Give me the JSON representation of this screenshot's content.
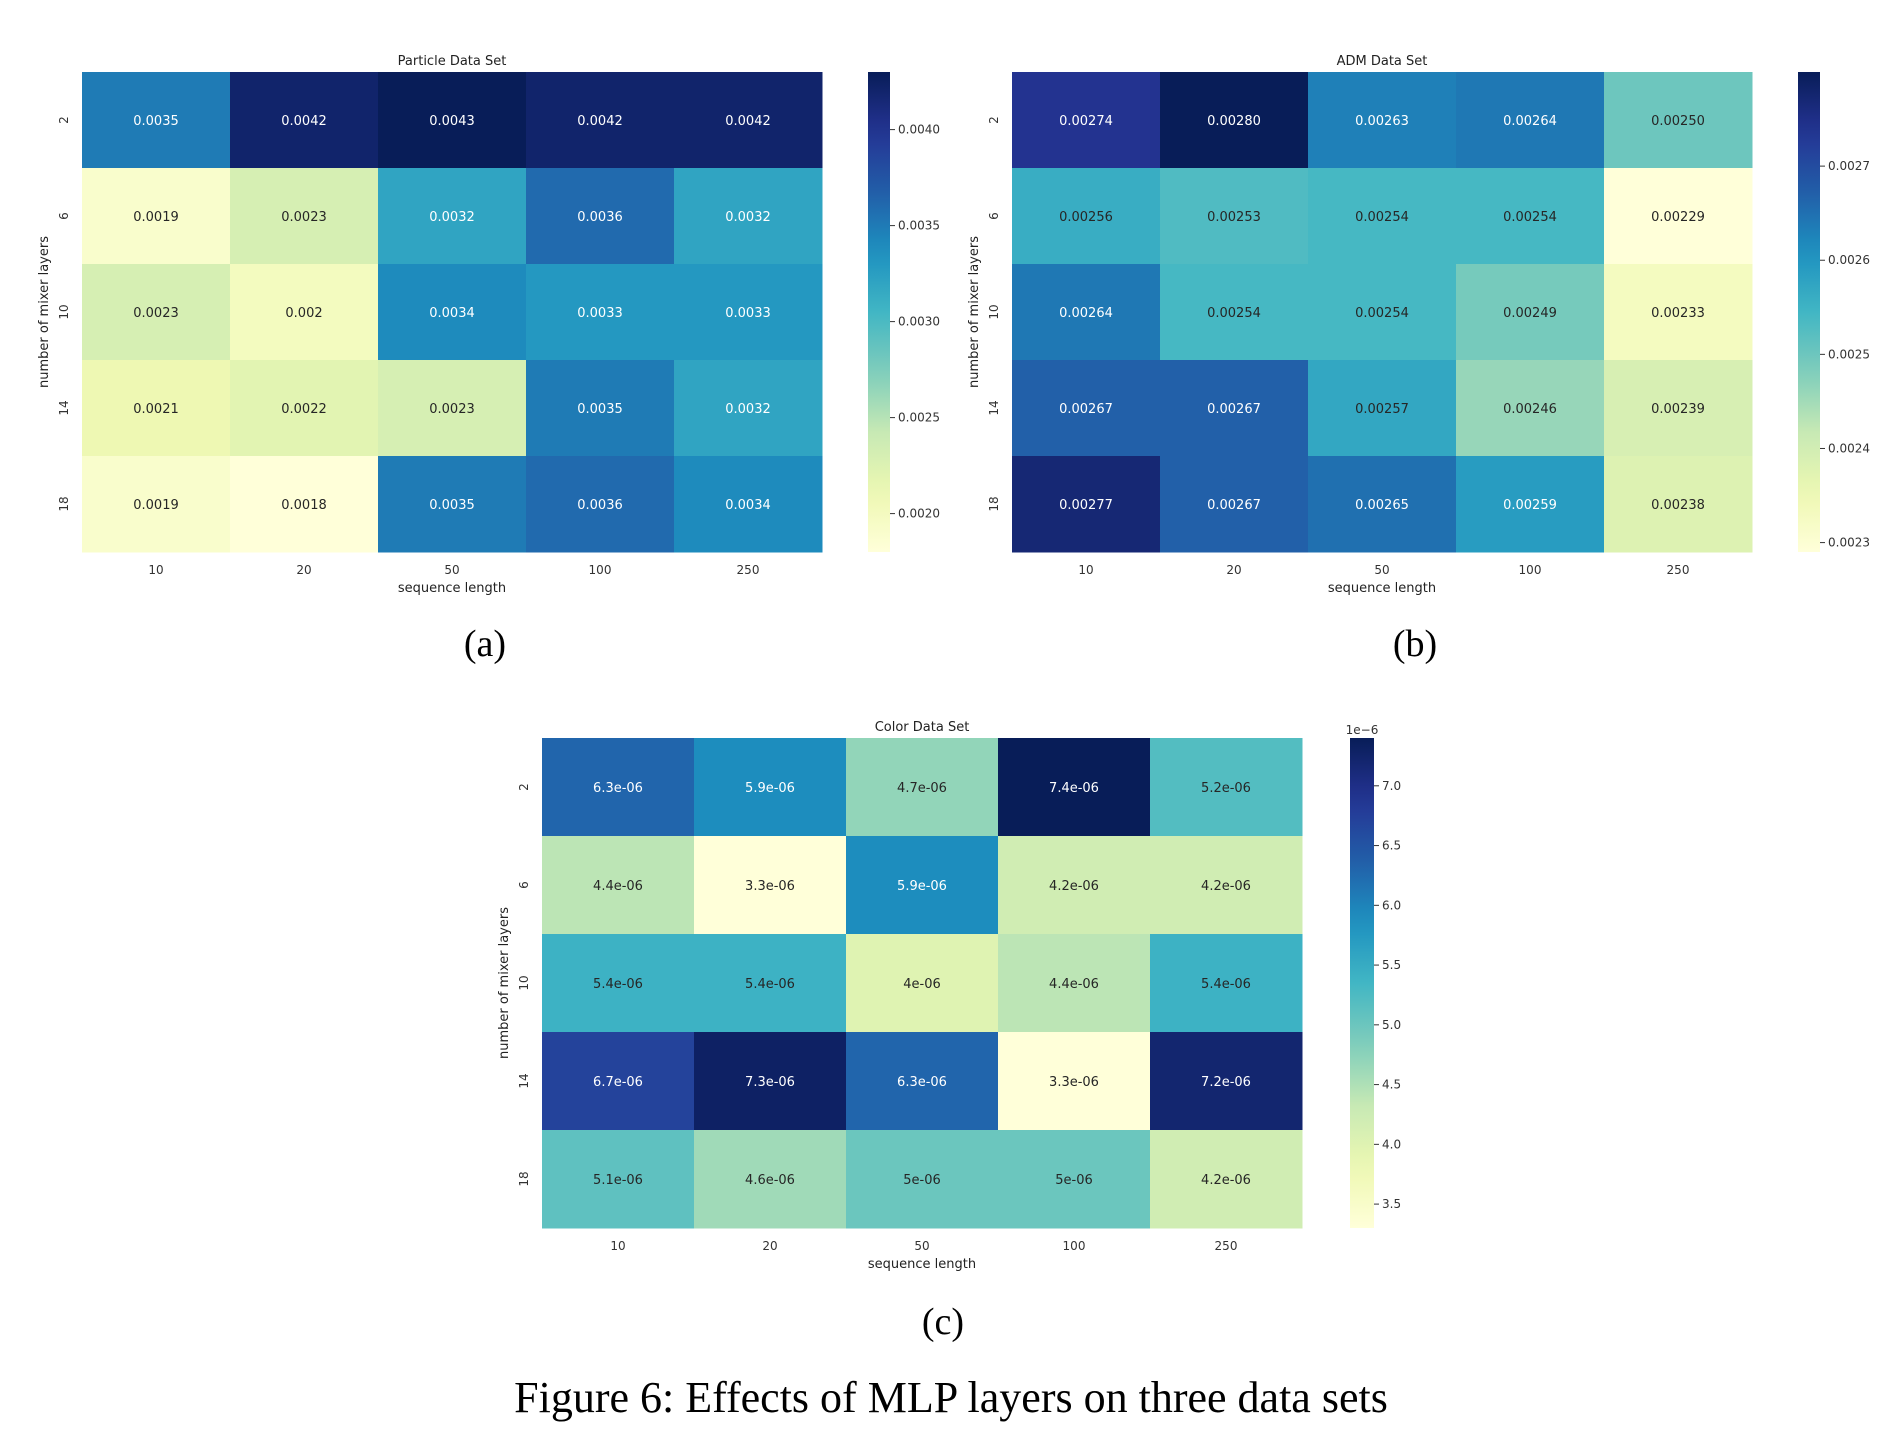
{
  "caption": "Figure 6: Effects of MLP layers on three data sets",
  "chart_data": [
    {
      "type": "heatmap",
      "label": "(a)",
      "title": "Particle Data Set",
      "xlabel": "sequence length",
      "ylabel": "number of mixer layers",
      "x": [
        "10",
        "20",
        "50",
        "100",
        "250"
      ],
      "y": [
        "2",
        "6",
        "10",
        "14",
        "18"
      ],
      "values": [
        [
          0.0035,
          0.0042,
          0.0043,
          0.0042,
          0.0042
        ],
        [
          0.0019,
          0.0023,
          0.0032,
          0.0036,
          0.0032
        ],
        [
          0.0023,
          0.002,
          0.0034,
          0.0033,
          0.0033
        ],
        [
          0.0021,
          0.0022,
          0.0023,
          0.0035,
          0.0032
        ],
        [
          0.0019,
          0.0018,
          0.0035,
          0.0036,
          0.0034
        ]
      ],
      "cell_labels": [
        [
          "0.0035",
          "0.0042",
          "0.0043",
          "0.0042",
          "0.0042"
        ],
        [
          "0.0019",
          "0.0023",
          "0.0032",
          "0.0036",
          "0.0032"
        ],
        [
          "0.0023",
          "0.002",
          "0.0034",
          "0.0033",
          "0.0033"
        ],
        [
          "0.0021",
          "0.0022",
          "0.0023",
          "0.0035",
          "0.0032"
        ],
        [
          "0.0019",
          "0.0018",
          "0.0035",
          "0.0036",
          "0.0034"
        ]
      ],
      "colorbar": {
        "min": 0.0018,
        "max": 0.0043,
        "ticks": [
          0.002,
          0.0025,
          0.003,
          0.0035,
          0.004
        ],
        "tick_labels": [
          "0.0020",
          "0.0025",
          "0.0030",
          "0.0035",
          "0.0040"
        ],
        "offset_label": ""
      },
      "colormap": "YlGnBu"
    },
    {
      "type": "heatmap",
      "label": "(b)",
      "title": "ADM Data Set",
      "xlabel": "sequence length",
      "ylabel": "number of mixer layers",
      "x": [
        "10",
        "20",
        "50",
        "100",
        "250"
      ],
      "y": [
        "2",
        "6",
        "10",
        "14",
        "18"
      ],
      "values": [
        [
          0.00274,
          0.0028,
          0.00263,
          0.00264,
          0.0025
        ],
        [
          0.00256,
          0.00253,
          0.00254,
          0.00254,
          0.00229
        ],
        [
          0.00264,
          0.00254,
          0.00254,
          0.00249,
          0.00233
        ],
        [
          0.00267,
          0.00267,
          0.00257,
          0.00246,
          0.00239
        ],
        [
          0.00277,
          0.00267,
          0.00265,
          0.00259,
          0.00238
        ]
      ],
      "cell_labels": [
        [
          "0.00274",
          "0.00280",
          "0.00263",
          "0.00264",
          "0.00250"
        ],
        [
          "0.00256",
          "0.00253",
          "0.00254",
          "0.00254",
          "0.00229"
        ],
        [
          "0.00264",
          "0.00254",
          "0.00254",
          "0.00249",
          "0.00233"
        ],
        [
          "0.00267",
          "0.00267",
          "0.00257",
          "0.00246",
          "0.00239"
        ],
        [
          "0.00277",
          "0.00267",
          "0.00265",
          "0.00259",
          "0.00238"
        ]
      ],
      "colorbar": {
        "min": 0.00229,
        "max": 0.0028,
        "ticks": [
          0.0023,
          0.0024,
          0.0025,
          0.0026,
          0.0027
        ],
        "tick_labels": [
          "0.0023",
          "0.0024",
          "0.0025",
          "0.0026",
          "0.0027"
        ],
        "offset_label": ""
      },
      "colormap": "YlGnBu"
    },
    {
      "type": "heatmap",
      "label": "(c)",
      "title": "Color Data Set",
      "xlabel": "sequence length",
      "ylabel": "number of mixer layers",
      "x": [
        "10",
        "20",
        "50",
        "100",
        "250"
      ],
      "y": [
        "2",
        "6",
        "10",
        "14",
        "18"
      ],
      "values": [
        [
          6.3e-06,
          5.9e-06,
          4.7e-06,
          7.4e-06,
          5.2e-06
        ],
        [
          4.4e-06,
          3.3e-06,
          5.9e-06,
          4.2e-06,
          4.2e-06
        ],
        [
          5.4e-06,
          5.4e-06,
          4e-06,
          4.4e-06,
          5.4e-06
        ],
        [
          6.7e-06,
          7.3e-06,
          6.3e-06,
          3.3e-06,
          7.2e-06
        ],
        [
          5.1e-06,
          4.6e-06,
          5e-06,
          5e-06,
          4.2e-06
        ]
      ],
      "cell_labels": [
        [
          "6.3e-06",
          "5.9e-06",
          "4.7e-06",
          "7.4e-06",
          "5.2e-06"
        ],
        [
          "4.4e-06",
          "3.3e-06",
          "5.9e-06",
          "4.2e-06",
          "4.2e-06"
        ],
        [
          "5.4e-06",
          "5.4e-06",
          "4e-06",
          "4.4e-06",
          "5.4e-06"
        ],
        [
          "6.7e-06",
          "7.3e-06",
          "6.3e-06",
          "3.3e-06",
          "7.2e-06"
        ],
        [
          "5.1e-06",
          "4.6e-06",
          "5e-06",
          "5e-06",
          "4.2e-06"
        ]
      ],
      "colorbar": {
        "min": 3.3e-06,
        "max": 7.4e-06,
        "ticks": [
          3.5e-06,
          4e-06,
          4.5e-06,
          5e-06,
          5.5e-06,
          6e-06,
          6.5e-06,
          7e-06
        ],
        "tick_labels": [
          "3.5",
          "4.0",
          "4.5",
          "5.0",
          "5.5",
          "6.0",
          "6.5",
          "7.0"
        ],
        "offset_label": "1e−6"
      },
      "colormap": "YlGnBu"
    }
  ]
}
